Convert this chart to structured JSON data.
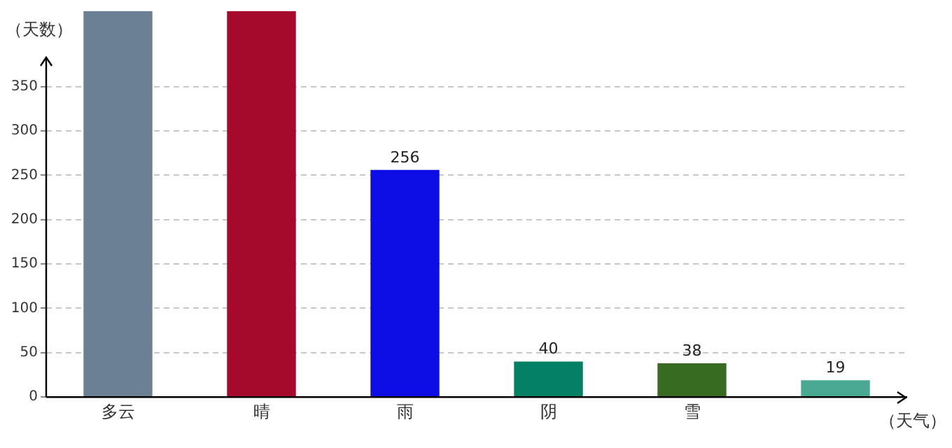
{
  "chart_data": {
    "type": "bar",
    "xlabel": "（天气）",
    "ylabel": "（天数）",
    "categories": [
      "多云",
      "晴",
      "雨",
      "阴",
      "雪",
      null
    ],
    "values": [
      435,
      435,
      256,
      40,
      38,
      19
    ],
    "colors": [
      "#6c8093",
      "#a50a2c",
      "#0d0de6",
      "#038066",
      "#386b22",
      "#4aa992"
    ],
    "value_labels": [
      null,
      null,
      "256",
      "40",
      "38",
      "19"
    ],
    "ylim": [
      0,
      435
    ],
    "yticks": [
      0,
      50,
      100,
      150,
      200,
      250,
      300,
      350
    ],
    "grid": "y",
    "legend": false
  }
}
